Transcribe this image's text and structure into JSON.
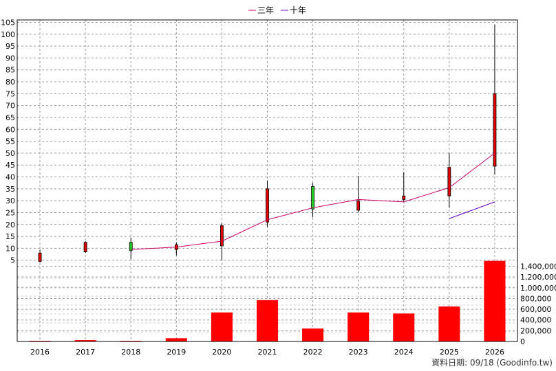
{
  "legend": {
    "ma3_label": "三年",
    "ma10_label": "十年"
  },
  "source_text": "資料日期: 09/18  (Goodinfo.tw)",
  "colors": {
    "up_candle": "#e00000",
    "down_candle": "#22cc22",
    "wick": "#000000",
    "volume_bar": "#ff0000",
    "ma3_line": "#cc0066",
    "ma10_line": "#6600cc",
    "grid": "#999999"
  },
  "chart_data": [
    {
      "type": "candlestick",
      "x": [
        "2016",
        "2017",
        "2018",
        "2019",
        "2020",
        "2021",
        "2022",
        "2023",
        "2024",
        "2025",
        "2026"
      ],
      "open": [
        4.5,
        8.5,
        12.5,
        9.5,
        11.0,
        21.0,
        36.0,
        26.0,
        30.5,
        32.0,
        44.5
      ],
      "close": [
        8.0,
        12.5,
        9.0,
        11.5,
        19.5,
        35.0,
        26.5,
        30.0,
        32.0,
        44.0,
        75.0
      ],
      "high": [
        9.5,
        13.0,
        14.5,
        12.5,
        20.5,
        38.5,
        37.5,
        40.5,
        42.0,
        50.0,
        104.0
      ],
      "low": [
        4.0,
        8.0,
        5.5,
        7.0,
        5.0,
        19.0,
        23.0,
        25.0,
        29.5,
        27.0,
        41.0
      ],
      "series": [
        {
          "name": "三年",
          "x": [
            "2018",
            "2019",
            "2020",
            "2021",
            "2022",
            "2023",
            "2024",
            "2025",
            "2026"
          ],
          "values": [
            9.5,
            10.5,
            13.0,
            22.0,
            27.0,
            30.5,
            29.5,
            35.5,
            50.0
          ]
        },
        {
          "name": "十年",
          "x": [
            "2025",
            "2026"
          ],
          "values": [
            22.5,
            29.5
          ]
        }
      ],
      "y_ticks": [
        5,
        10,
        15,
        20,
        25,
        30,
        35,
        40,
        45,
        50,
        55,
        60,
        65,
        70,
        75,
        80,
        85,
        90,
        95,
        100,
        105
      ],
      "ylim": [
        0,
        106
      ],
      "grid": true,
      "legend_position": "top-center"
    },
    {
      "type": "bar",
      "categories": [
        "2016",
        "2017",
        "2018",
        "2019",
        "2020",
        "2021",
        "2022",
        "2023",
        "2024",
        "2025",
        "2026"
      ],
      "values": [
        5000,
        25000,
        5000,
        60000,
        540000,
        770000,
        240000,
        540000,
        520000,
        650000,
        1500000
      ],
      "y_ticks": [
        "0",
        "200,000",
        "400,000",
        "600,000",
        "800,000",
        "1,000,000",
        "1,200,000",
        "1,400,000"
      ],
      "ylim": [
        0,
        1560000
      ],
      "grid": true
    }
  ]
}
